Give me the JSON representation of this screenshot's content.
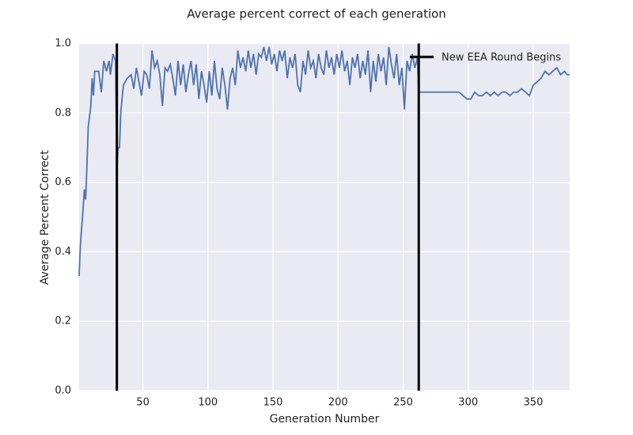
{
  "chart_data": {
    "type": "line",
    "title": "Average percent correct of each generation",
    "xlabel": "Generation Number",
    "ylabel": "Average Percent Correct",
    "xlim": [
      1,
      378
    ],
    "ylim": [
      0,
      1
    ],
    "xticks": [
      50,
      100,
      150,
      200,
      250,
      300,
      350
    ],
    "yticks": [
      {
        "value": 0,
        "label": "0.0"
      },
      0.2,
      0.4,
      0.6,
      0.8,
      {
        "value": 1,
        "label": "1.0"
      }
    ],
    "grid": true,
    "background": "#eaeaf2",
    "legend": "upper right",
    "vlines": {
      "name": "New EEA Round Begins",
      "color": "#000000",
      "x": [
        30,
        262
      ]
    },
    "series": [
      {
        "name": "Average percent correct",
        "color": "#4c72b0",
        "x": [
          1,
          2,
          4,
          5,
          6,
          7,
          8,
          10,
          11,
          12,
          13,
          16,
          18,
          20,
          22,
          24,
          25,
          27,
          29,
          30,
          31,
          32,
          33,
          35,
          38,
          41,
          43,
          45,
          47,
          49,
          51,
          53,
          55,
          57,
          59,
          61,
          63,
          65,
          67,
          69,
          71,
          73,
          75,
          77,
          79,
          81,
          83,
          85,
          87,
          89,
          91,
          93,
          95,
          97,
          99,
          101,
          103,
          105,
          107,
          109,
          111,
          113,
          115,
          117,
          119,
          121,
          123,
          125,
          127,
          129,
          131,
          133,
          135,
          137,
          139,
          141,
          143,
          145,
          147,
          149,
          151,
          153,
          155,
          157,
          159,
          161,
          163,
          165,
          167,
          169,
          171,
          173,
          175,
          177,
          179,
          181,
          183,
          185,
          187,
          189,
          191,
          193,
          195,
          197,
          199,
          201,
          203,
          205,
          207,
          209,
          211,
          213,
          215,
          217,
          219,
          221,
          223,
          225,
          227,
          229,
          231,
          233,
          235,
          237,
          239,
          241,
          243,
          245,
          247,
          249,
          251,
          253,
          255,
          257,
          259,
          261,
          262,
          265,
          268,
          272,
          275,
          280,
          285,
          290,
          293,
          296,
          299,
          302,
          305,
          308,
          311,
          314,
          317,
          320,
          323,
          326,
          329,
          332,
          335,
          338,
          341,
          344,
          347,
          350,
          353,
          356,
          359,
          362,
          365,
          368,
          371,
          374,
          376,
          378
        ],
        "values": [
          0.33,
          0.42,
          0.52,
          0.58,
          0.55,
          0.65,
          0.76,
          0.82,
          0.9,
          0.85,
          0.92,
          0.92,
          0.86,
          0.95,
          0.92,
          0.95,
          0.91,
          0.97,
          0.95,
          0.63,
          0.7,
          0.7,
          0.8,
          0.88,
          0.9,
          0.91,
          0.87,
          0.93,
          0.89,
          0.85,
          0.92,
          0.91,
          0.87,
          0.98,
          0.93,
          0.95,
          0.91,
          0.82,
          0.93,
          0.92,
          0.94,
          0.9,
          0.85,
          0.95,
          0.88,
          0.94,
          0.86,
          0.91,
          0.95,
          0.88,
          0.94,
          0.84,
          0.92,
          0.88,
          0.83,
          0.92,
          0.85,
          0.95,
          0.87,
          0.84,
          0.93,
          0.88,
          0.81,
          0.9,
          0.93,
          0.88,
          0.98,
          0.93,
          0.96,
          0.92,
          0.98,
          0.93,
          0.97,
          0.91,
          0.97,
          0.96,
          0.99,
          0.95,
          0.99,
          0.94,
          0.97,
          0.92,
          0.98,
          0.95,
          0.98,
          0.9,
          0.96,
          0.93,
          0.97,
          0.88,
          0.86,
          0.95,
          0.91,
          0.98,
          0.93,
          0.95,
          0.9,
          0.97,
          0.93,
          0.91,
          0.98,
          0.93,
          0.96,
          0.91,
          0.97,
          0.93,
          0.98,
          0.92,
          0.95,
          0.88,
          0.96,
          0.93,
          0.97,
          0.9,
          0.95,
          0.91,
          0.98,
          0.86,
          0.95,
          0.89,
          0.97,
          0.92,
          0.96,
          0.88,
          0.99,
          0.94,
          0.9,
          0.97,
          0.88,
          0.93,
          0.81,
          0.95,
          0.92,
          0.97,
          0.93,
          0.96,
          0.86,
          0.86,
          0.86,
          0.86,
          0.86,
          0.86,
          0.86,
          0.86,
          0.86,
          0.85,
          0.84,
          0.84,
          0.86,
          0.85,
          0.85,
          0.86,
          0.85,
          0.86,
          0.85,
          0.86,
          0.86,
          0.85,
          0.86,
          0.86,
          0.87,
          0.86,
          0.85,
          0.88,
          0.89,
          0.9,
          0.92,
          0.91,
          0.92,
          0.93,
          0.91,
          0.92,
          0.91,
          0.91
        ]
      }
    ]
  }
}
